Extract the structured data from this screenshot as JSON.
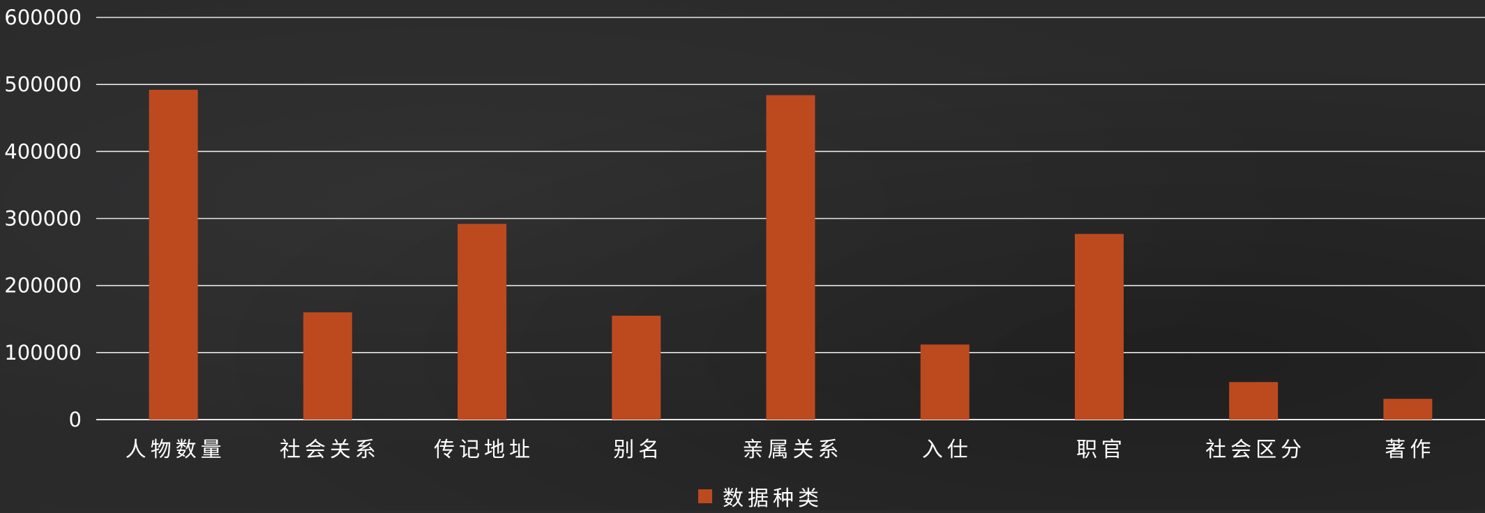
{
  "chart_data": {
    "type": "bar",
    "categories": [
      "人物数量",
      "社会关系",
      "传记地址",
      "别名",
      "亲属关系",
      "入仕",
      "职官",
      "社会区分",
      "著作"
    ],
    "series": [
      {
        "name": "数据种类",
        "values": [
          492000,
          160000,
          292000,
          155000,
          484000,
          112000,
          277000,
          56000,
          31000
        ]
      }
    ],
    "yticks": [
      "0",
      "100000",
      "200000",
      "300000",
      "400000",
      "500000",
      "600000"
    ],
    "ylim": [
      0,
      600000
    ],
    "grid": true,
    "legend_position": "bottom",
    "colors": {
      "bar": "#bd4a1f",
      "grid": "#e8e8e8",
      "text": "#ffffff"
    }
  }
}
